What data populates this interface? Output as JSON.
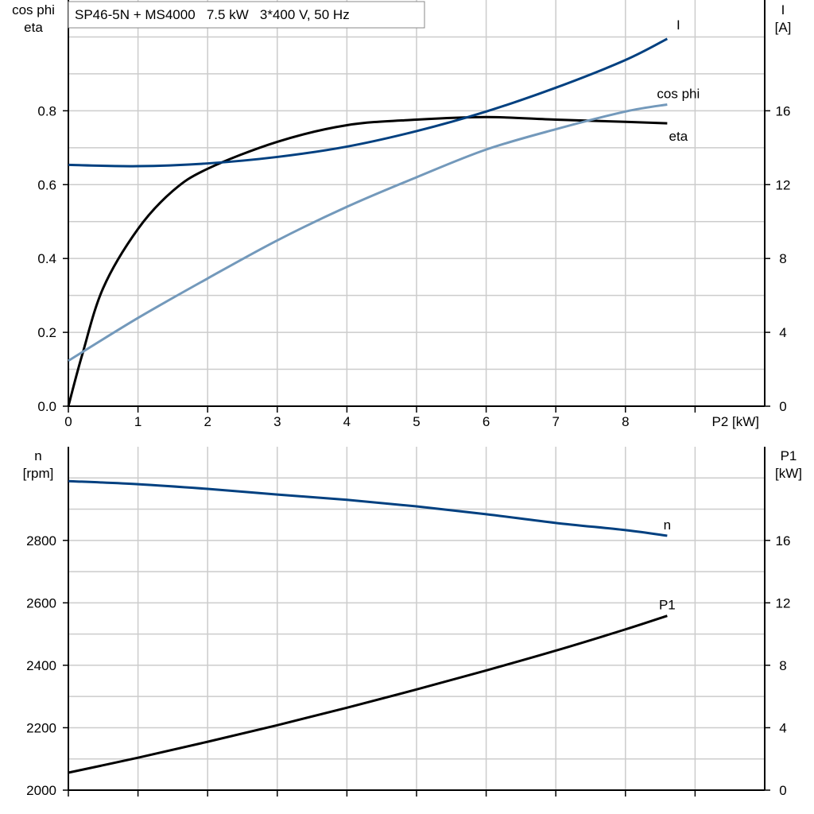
{
  "title": "SP46-5N + MS4000   7.5 kW   3*400 V, 50 Hz",
  "colors": {
    "I": "#004080",
    "cos_phi": "#7399bb",
    "eta": "#000000",
    "n": "#004080",
    "P1": "#000000",
    "grid": "#cccccc"
  },
  "chart_data": [
    {
      "type": "line",
      "xlabel": "P2 [kW]",
      "xlim": [
        0,
        10
      ],
      "xticks": [
        0,
        1,
        2,
        3,
        4,
        5,
        6,
        7,
        8
      ],
      "ylabel_left": [
        "cos phi",
        "eta"
      ],
      "ylim_left": [
        0,
        1.1
      ],
      "yticks_left": [
        "0.0",
        "0.2",
        "0.4",
        "0.6",
        "0.8"
      ],
      "ylabel_right": [
        "I",
        "[A]"
      ],
      "ylim_right": [
        0,
        22
      ],
      "yticks_right": [
        "0",
        "4",
        "8",
        "12",
        "16"
      ],
      "grid": true,
      "series": [
        {
          "name": "eta",
          "axis": "left",
          "x": [
            0,
            0.2,
            0.5,
            1,
            1.5,
            2,
            3,
            4,
            5,
            6,
            7,
            8,
            8.6
          ],
          "y": [
            0,
            0.14,
            0.32,
            0.48,
            0.583,
            0.643,
            0.716,
            0.761,
            0.776,
            0.783,
            0.776,
            0.77,
            0.766
          ]
        },
        {
          "name": "cos phi",
          "axis": "left",
          "x": [
            0,
            1,
            2,
            3,
            4,
            5,
            6,
            7,
            8,
            8.6
          ],
          "y": [
            0.123,
            0.239,
            0.346,
            0.449,
            0.54,
            0.62,
            0.695,
            0.75,
            0.798,
            0.817
          ]
        },
        {
          "name": "I",
          "axis": "right",
          "x": [
            0,
            1,
            2,
            3,
            4,
            5,
            6,
            7,
            8,
            8.6
          ],
          "y": [
            13.07,
            13.0,
            13.15,
            13.5,
            14.06,
            14.9,
            15.96,
            17.25,
            18.75,
            19.9
          ]
        }
      ]
    },
    {
      "type": "line",
      "xlim": [
        0,
        10
      ],
      "ylabel_left": [
        "n",
        "[rpm]"
      ],
      "ylim_left": [
        2000,
        3100
      ],
      "yticks_left": [
        "2000",
        "2200",
        "2400",
        "2600",
        "2800"
      ],
      "ylabel_right": [
        "P1",
        "[kW]"
      ],
      "ylim_right": [
        0,
        22
      ],
      "yticks_right": [
        "0",
        "4",
        "8",
        "12",
        "16"
      ],
      "grid": true,
      "series": [
        {
          "name": "n",
          "axis": "left",
          "x": [
            0,
            1,
            2,
            3,
            4,
            5,
            6,
            7,
            8,
            8.6
          ],
          "y": [
            2990,
            2980,
            2965,
            2947,
            2930,
            2909,
            2884,
            2856,
            2833,
            2815
          ]
        },
        {
          "name": "P1",
          "axis": "right",
          "x": [
            0,
            1,
            2,
            3,
            4,
            5,
            6,
            7,
            8,
            8.6
          ],
          "y": [
            1.12,
            2.08,
            3.1,
            4.16,
            5.28,
            6.45,
            7.67,
            8.94,
            10.3,
            11.17
          ]
        }
      ]
    }
  ]
}
